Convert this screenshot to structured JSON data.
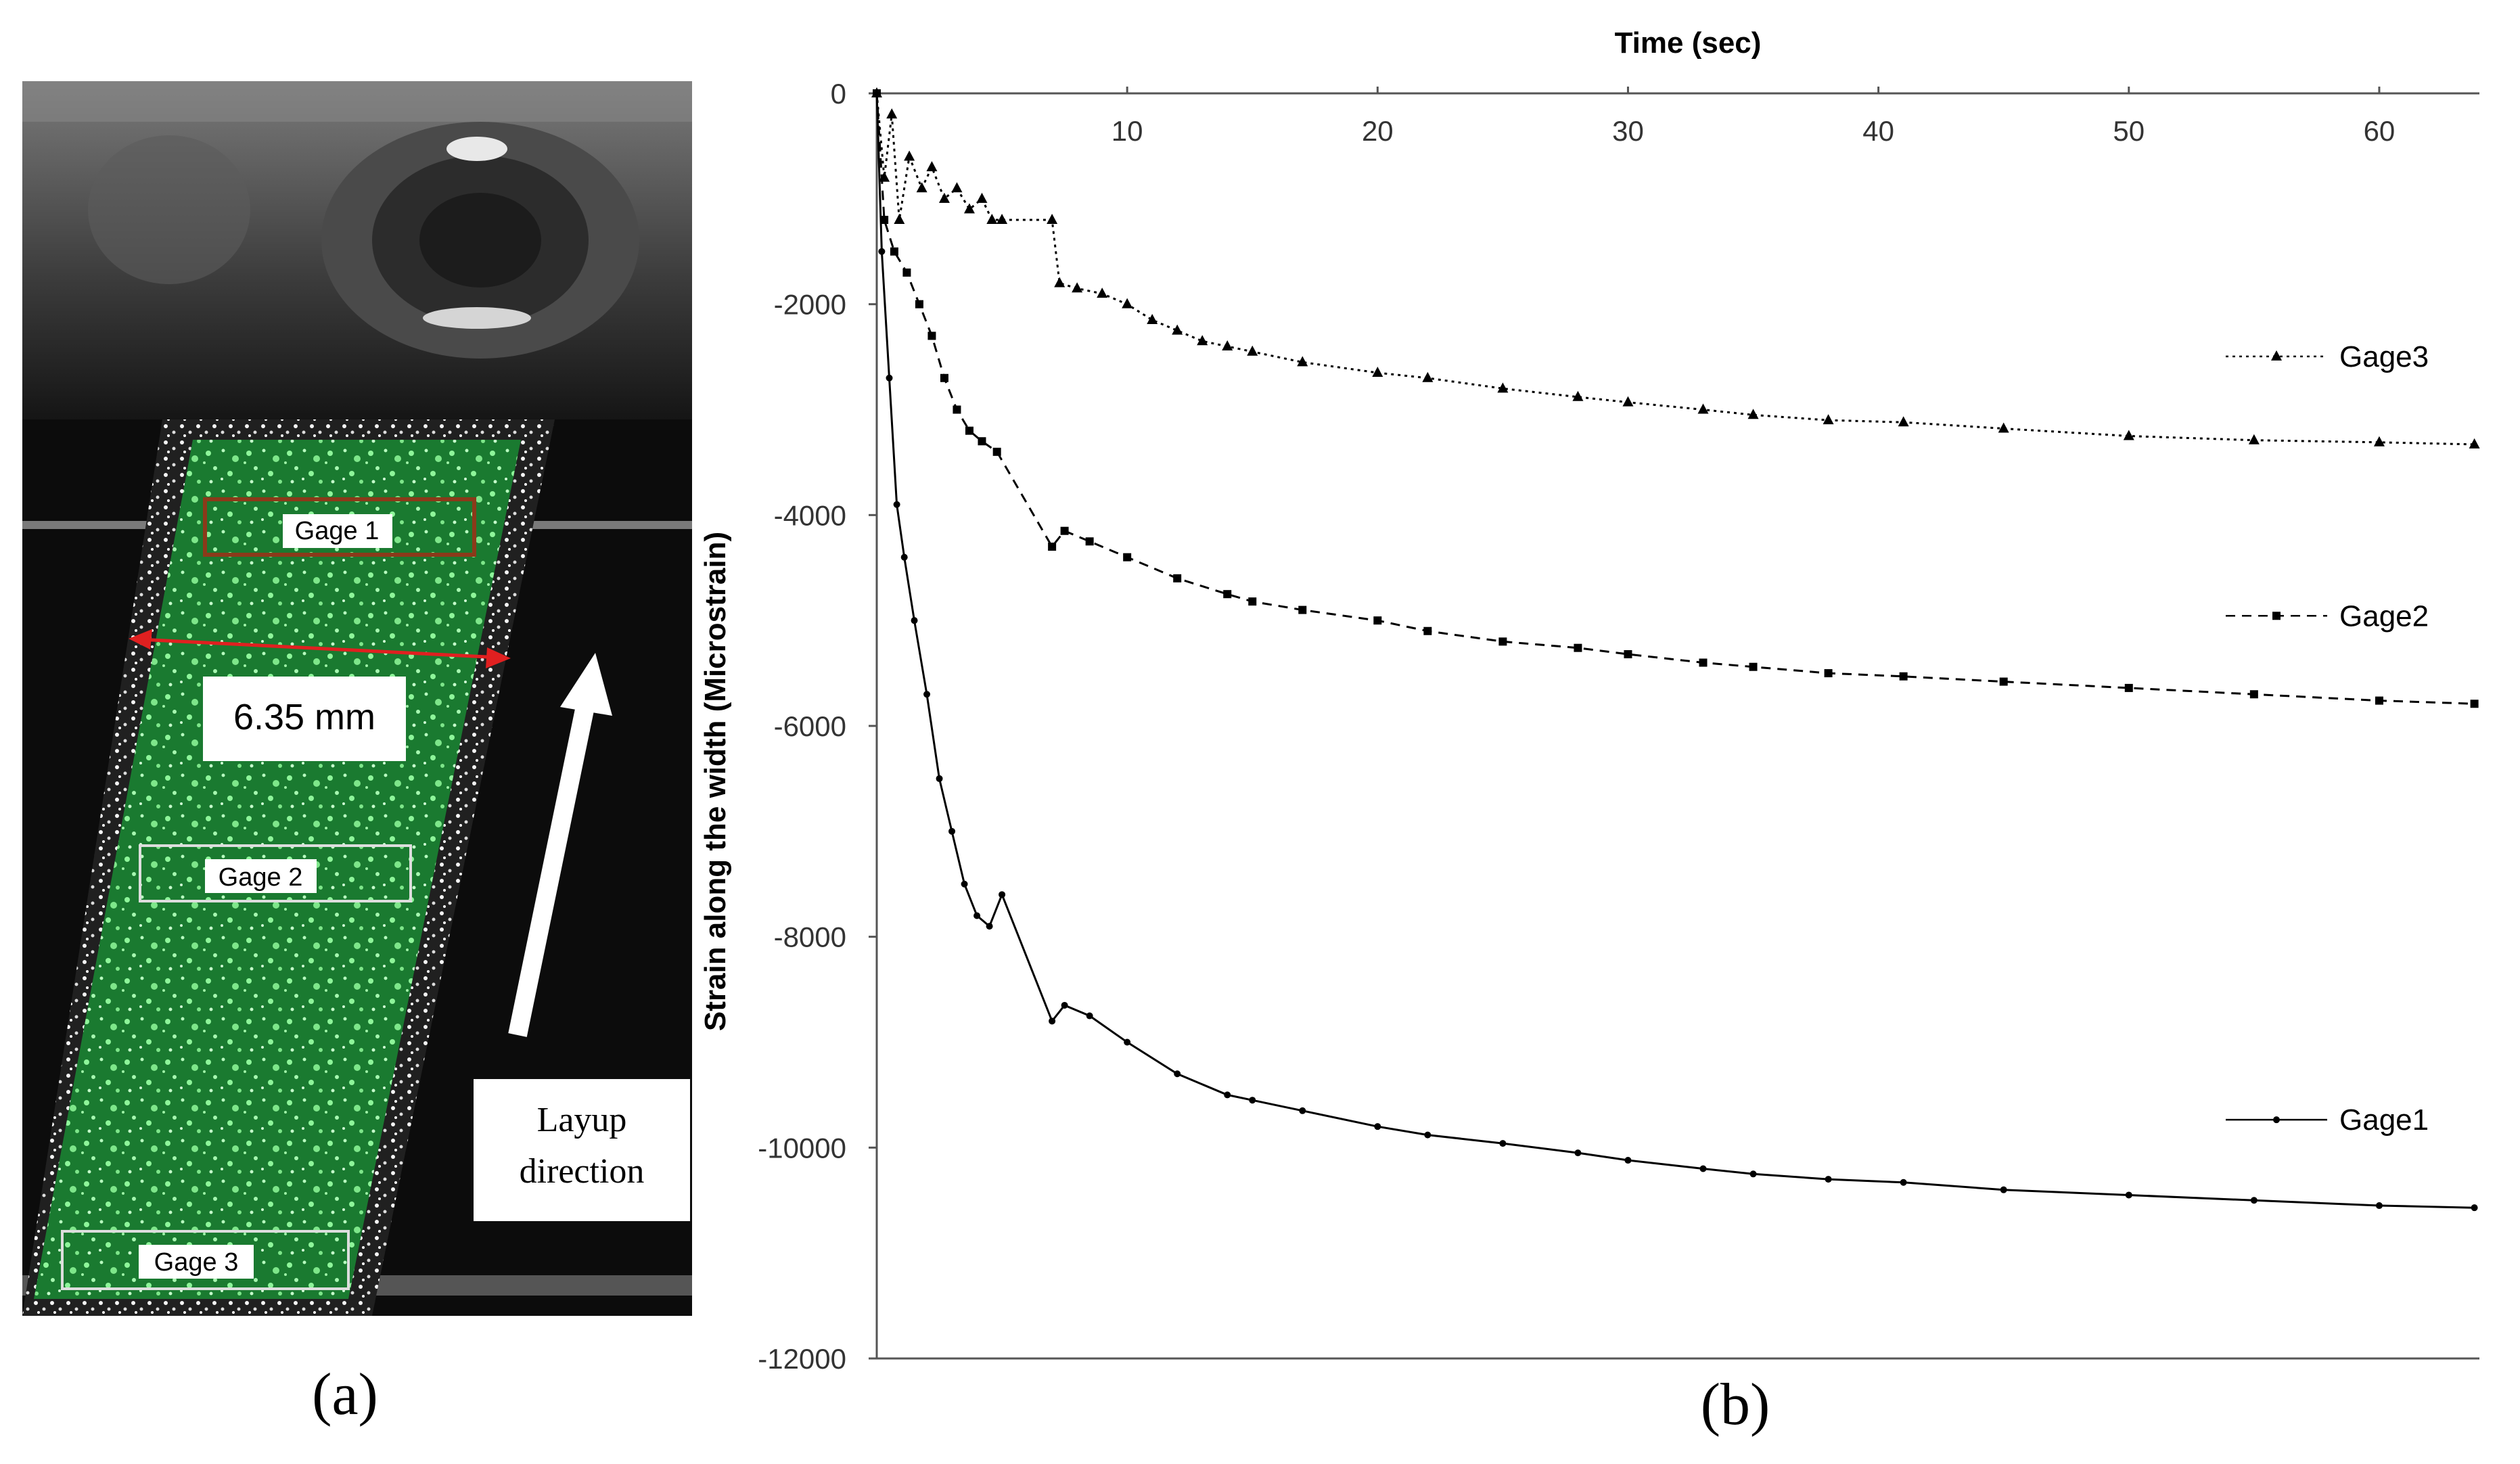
{
  "panel_a": {
    "gage_labels": [
      "Gage 1",
      "Gage 2",
      "Gage 3"
    ],
    "width_label": "6.35 mm",
    "layup_line1": "Layup",
    "layup_line2": "direction",
    "caption": "(a)",
    "colors": {
      "speckle_green": "#1a7a30",
      "speckle_light": "#8ef59a",
      "gage1_box": "#8b3a1a",
      "arrow_red": "#e02020"
    }
  },
  "panel_b": {
    "caption": "(b)"
  },
  "chart_data": {
    "type": "line",
    "title": "",
    "xlabel": "Time (sec)",
    "ylabel": "Strain along the width (Microstrain)",
    "xlim": [
      0,
      64
    ],
    "ylim": [
      -12000,
      0
    ],
    "x_ticks": [
      10,
      20,
      30,
      40,
      50,
      60
    ],
    "y_ticks": [
      0,
      -2000,
      -4000,
      -6000,
      -8000,
      -10000,
      -12000
    ],
    "x_axis_position": "top",
    "grid": false,
    "legend": "inline labels at right end of each series",
    "series": [
      {
        "name": "Gage3",
        "marker": "triangle",
        "line": "dotted",
        "points": [
          [
            0,
            0
          ],
          [
            0.3,
            -800
          ],
          [
            0.6,
            -200
          ],
          [
            0.9,
            -1200
          ],
          [
            1.3,
            -600
          ],
          [
            1.8,
            -900
          ],
          [
            2.2,
            -700
          ],
          [
            2.7,
            -1000
          ],
          [
            3.2,
            -900
          ],
          [
            3.7,
            -1100
          ],
          [
            4.2,
            -1000
          ],
          [
            4.6,
            -1200
          ],
          [
            5,
            -1200
          ],
          [
            7,
            -1200
          ],
          [
            7.3,
            -1800
          ],
          [
            8,
            -1850
          ],
          [
            9,
            -1900
          ],
          [
            10,
            -2000
          ],
          [
            11,
            -2150
          ],
          [
            12,
            -2250
          ],
          [
            13,
            -2350
          ],
          [
            14,
            -2400
          ],
          [
            15,
            -2450
          ],
          [
            17,
            -2550
          ],
          [
            20,
            -2650
          ],
          [
            22,
            -2700
          ],
          [
            25,
            -2800
          ],
          [
            28,
            -2880
          ],
          [
            30,
            -2930
          ],
          [
            33,
            -3000
          ],
          [
            35,
            -3050
          ],
          [
            38,
            -3100
          ],
          [
            41,
            -3120
          ],
          [
            45,
            -3180
          ],
          [
            50,
            -3250
          ],
          [
            55,
            -3290
          ],
          [
            60,
            -3310
          ],
          [
            63.8,
            -3330
          ]
        ]
      },
      {
        "name": "Gage2",
        "marker": "square",
        "line": "dashed",
        "points": [
          [
            0,
            0
          ],
          [
            0.3,
            -1200
          ],
          [
            0.7,
            -1500
          ],
          [
            1.2,
            -1700
          ],
          [
            1.7,
            -2000
          ],
          [
            2.2,
            -2300
          ],
          [
            2.7,
            -2700
          ],
          [
            3.2,
            -3000
          ],
          [
            3.7,
            -3200
          ],
          [
            4.2,
            -3300
          ],
          [
            4.8,
            -3400
          ],
          [
            7,
            -4300
          ],
          [
            7.5,
            -4150
          ],
          [
            8.5,
            -4250
          ],
          [
            10,
            -4400
          ],
          [
            12,
            -4600
          ],
          [
            14,
            -4750
          ],
          [
            15,
            -4820
          ],
          [
            17,
            -4900
          ],
          [
            20,
            -5000
          ],
          [
            22,
            -5100
          ],
          [
            25,
            -5200
          ],
          [
            28,
            -5260
          ],
          [
            30,
            -5320
          ],
          [
            33,
            -5400
          ],
          [
            35,
            -5440
          ],
          [
            38,
            -5500
          ],
          [
            41,
            -5530
          ],
          [
            45,
            -5580
          ],
          [
            50,
            -5640
          ],
          [
            55,
            -5700
          ],
          [
            60,
            -5760
          ],
          [
            63.8,
            -5790
          ]
        ]
      },
      {
        "name": "Gage1",
        "marker": "diamond",
        "line": "solid",
        "points": [
          [
            0,
            0
          ],
          [
            0.2,
            -1500
          ],
          [
            0.5,
            -2700
          ],
          [
            0.8,
            -3900
          ],
          [
            1.1,
            -4400
          ],
          [
            1.5,
            -5000
          ],
          [
            2,
            -5700
          ],
          [
            2.5,
            -6500
          ],
          [
            3,
            -7000
          ],
          [
            3.5,
            -7500
          ],
          [
            4,
            -7800
          ],
          [
            4.5,
            -7900
          ],
          [
            5,
            -7600
          ],
          [
            7,
            -8800
          ],
          [
            7.5,
            -8650
          ],
          [
            8.5,
            -8750
          ],
          [
            10,
            -9000
          ],
          [
            12,
            -9300
          ],
          [
            14,
            -9500
          ],
          [
            15,
            -9550
          ],
          [
            17,
            -9650
          ],
          [
            20,
            -9800
          ],
          [
            22,
            -9880
          ],
          [
            25,
            -9960
          ],
          [
            28,
            -10050
          ],
          [
            30,
            -10120
          ],
          [
            33,
            -10200
          ],
          [
            35,
            -10250
          ],
          [
            38,
            -10300
          ],
          [
            41,
            -10330
          ],
          [
            45,
            -10400
          ],
          [
            50,
            -10450
          ],
          [
            55,
            -10500
          ],
          [
            60,
            -10550
          ],
          [
            63.8,
            -10570
          ]
        ]
      }
    ]
  }
}
